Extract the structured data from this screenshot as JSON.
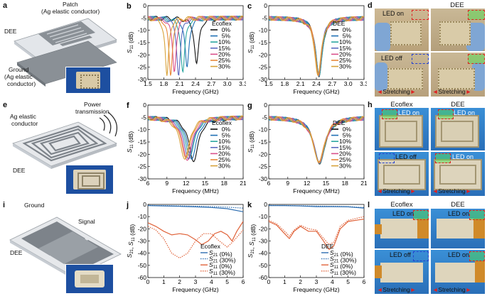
{
  "panels": {
    "a": {
      "label": "a",
      "patch": "Patch",
      "patch_sub": "(Ag elastic conductor)",
      "dee": "DEE",
      "ground": "Ground",
      "ground_sub": "(Ag elastic",
      "ground_sub2": "conductor)"
    },
    "d": {
      "label": "d",
      "col1": "",
      "col2": "DEE",
      "led_on_1": "LED on",
      "led_on_2": "",
      "led_off": "LED off",
      "led_on_3": "",
      "stretch1": "Stretching",
      "stretch2": "Stretching"
    },
    "e": {
      "label": "e",
      "ag": "Ag elastic",
      "ag_sub": "conductor",
      "power": "Power",
      "power_sub": "transmission",
      "dee": "DEE"
    },
    "h": {
      "label": "h",
      "col1": "Ecoflex",
      "col2": "DEE",
      "led_on_1": "LED on",
      "led_on_2": "LED on",
      "led_off": "LED off",
      "led_on_3": "LED on",
      "stretch1": "Stretching",
      "stretch2": "Stretching"
    },
    "i": {
      "label": "i",
      "ground": "Ground",
      "signal": "Signal",
      "dee": "DEE"
    },
    "l": {
      "label": "l",
      "col1": "Ecoflex",
      "col2": "DEE",
      "led_on_1": "LED on",
      "led_on_2": "LED on",
      "led_off": "LED off",
      "led_on_3": "LED on",
      "stretch1": "Stretching",
      "stretch2": "Stretching"
    }
  },
  "colors": {
    "c0": "#111111",
    "c5": "#1f6fb4",
    "c10": "#2aa6a0",
    "c15": "#5c6bc0",
    "c20": "#d94f8a",
    "c25": "#e8893a",
    "c30": "#d8a23a",
    "s21": "#2b6cb0",
    "s11": "#e0633a"
  },
  "chart_data": [
    {
      "id": "b",
      "panel_label": "b",
      "type": "line",
      "xlabel": "Frequency (GHz)",
      "ylabel": "S11 (dB)",
      "xlim": [
        1.5,
        3.3
      ],
      "ylim": [
        -30,
        0
      ],
      "xticks": [
        "1.5",
        "1.8",
        "2.1",
        "2.4",
        "2.7",
        "3.0",
        "3.3"
      ],
      "yticks": [
        "0",
        "-5",
        "-10",
        "-15",
        "-20",
        "-25",
        "-30"
      ],
      "legend_title": "Ecoflex",
      "series": [
        {
          "name": "0%",
          "dip_x": 2.42,
          "dip_y": -23.5,
          "width": 0.09
        },
        {
          "name": "5%",
          "dip_x": 2.24,
          "dip_y": -25,
          "width": 0.08
        },
        {
          "name": "10%",
          "dip_x": 2.16,
          "dip_y": -27,
          "width": 0.08
        },
        {
          "name": "15%",
          "dip_x": 2.08,
          "dip_y": -28.5,
          "width": 0.075
        },
        {
          "name": "20%",
          "dip_x": 2.0,
          "dip_y": -27,
          "width": 0.075
        },
        {
          "name": "25%",
          "dip_x": 1.93,
          "dip_y": -28.5,
          "width": 0.07
        },
        {
          "name": "30%",
          "dip_x": 1.86,
          "dip_y": -28.5,
          "width": 0.07
        }
      ]
    },
    {
      "id": "c",
      "panel_label": "c",
      "type": "line",
      "xlabel": "Frequency (GHz)",
      "ylabel": "S11 (dB)",
      "xlim": [
        1.5,
        3.3
      ],
      "ylim": [
        -30,
        0
      ],
      "xticks": [
        "1.5",
        "1.8",
        "2.1",
        "2.4",
        "2.7",
        "3.0",
        "3.3"
      ],
      "yticks": [
        "0",
        "-5",
        "-10",
        "-15",
        "-20",
        "-25",
        "-30"
      ],
      "legend_title": "DEE",
      "series": [
        {
          "name": "0%",
          "dip_x": 2.45,
          "dip_y": -29,
          "width": 0.13
        },
        {
          "name": "5%",
          "dip_x": 2.45,
          "dip_y": -28.5,
          "width": 0.13
        },
        {
          "name": "10%",
          "dip_x": 2.45,
          "dip_y": -28.8,
          "width": 0.135
        },
        {
          "name": "15%",
          "dip_x": 2.44,
          "dip_y": -28.2,
          "width": 0.13
        },
        {
          "name": "20%",
          "dip_x": 2.44,
          "dip_y": -28.6,
          "width": 0.135
        },
        {
          "name": "25%",
          "dip_x": 2.44,
          "dip_y": -28.0,
          "width": 0.13
        },
        {
          "name": "30%",
          "dip_x": 2.43,
          "dip_y": -28.4,
          "width": 0.135
        }
      ]
    },
    {
      "id": "f",
      "panel_label": "f",
      "type": "line",
      "xlabel": "Frequency (MHz)",
      "ylabel": "S11 (dB)",
      "xlim": [
        6,
        21
      ],
      "ylim": [
        -30,
        0
      ],
      "xticks": [
        "6",
        "9",
        "12",
        "15",
        "18",
        "21"
      ],
      "yticks": [
        "0",
        "-5",
        "-10",
        "-15",
        "-20",
        "-25",
        "-30"
      ],
      "legend_title": "Ecoflex",
      "series": [
        {
          "name": "0%",
          "dip_x": 13.2,
          "dip_y": -23,
          "width": 1.6
        },
        {
          "name": "5%",
          "dip_x": 12.9,
          "dip_y": -22,
          "width": 1.6
        },
        {
          "name": "10%",
          "dip_x": 12.6,
          "dip_y": -21,
          "width": 1.6
        },
        {
          "name": "15%",
          "dip_x": 12.4,
          "dip_y": -22,
          "width": 1.6
        },
        {
          "name": "20%",
          "dip_x": 12.2,
          "dip_y": -22.5,
          "width": 1.6
        },
        {
          "name": "25%",
          "dip_x": 12.0,
          "dip_y": -21.5,
          "width": 1.6
        },
        {
          "name": "30%",
          "dip_x": 11.8,
          "dip_y": -22,
          "width": 1.6
        }
      ]
    },
    {
      "id": "g",
      "panel_label": "g",
      "type": "line",
      "xlabel": "Frequency (MHz)",
      "ylabel": "S11 (dB)",
      "xlim": [
        6,
        21
      ],
      "ylim": [
        -30,
        0
      ],
      "xticks": [
        "6",
        "9",
        "12",
        "15",
        "18",
        "21"
      ],
      "yticks": [
        "0",
        "-5",
        "-10",
        "-15",
        "-20",
        "-25",
        "-30"
      ],
      "legend_title": "DEE",
      "series": [
        {
          "name": "0%",
          "dip_x": 14.0,
          "dip_y": -24,
          "width": 1.9
        },
        {
          "name": "5%",
          "dip_x": 14.0,
          "dip_y": -23.5,
          "width": 1.9
        },
        {
          "name": "10%",
          "dip_x": 14.0,
          "dip_y": -23.8,
          "width": 1.95
        },
        {
          "name": "15%",
          "dip_x": 13.95,
          "dip_y": -23.2,
          "width": 1.9
        },
        {
          "name": "20%",
          "dip_x": 13.95,
          "dip_y": -23.6,
          "width": 1.95
        },
        {
          "name": "25%",
          "dip_x": 13.9,
          "dip_y": -23.0,
          "width": 1.9
        },
        {
          "name": "30%",
          "dip_x": 13.9,
          "dip_y": -23.4,
          "width": 1.95
        }
      ]
    },
    {
      "id": "j",
      "panel_label": "j",
      "type": "line",
      "xlabel": "Frequency (GHz)",
      "ylabel": "S21, S11 (dB)",
      "xlim": [
        0,
        6
      ],
      "ylim": [
        -60,
        0
      ],
      "xticks": [
        "0",
        "1",
        "2",
        "3",
        "4",
        "5",
        "6"
      ],
      "yticks": [
        "0",
        "-10",
        "-20",
        "-30",
        "-40",
        "-50",
        "-60"
      ],
      "legend_title": "Ecoflex",
      "series": [
        {
          "name": "S21 (0%)",
          "style": "solid",
          "color": "s21",
          "points": [
            [
              0,
              -1
            ],
            [
              1,
              -1.2
            ],
            [
              2,
              -1.6
            ],
            [
              3,
              -2
            ],
            [
              4,
              -2.5
            ],
            [
              5,
              -3.5
            ],
            [
              6,
              -6
            ]
          ]
        },
        {
          "name": "S21 (30%)",
          "style": "dotted",
          "color": "s21",
          "points": [
            [
              0,
              -0.8
            ],
            [
              1,
              -1
            ],
            [
              2,
              -1.2
            ],
            [
              3,
              -1.5
            ],
            [
              4,
              -1.8
            ],
            [
              5,
              -2.2
            ],
            [
              6,
              -3
            ]
          ]
        },
        {
          "name": "S11 (0%)",
          "style": "solid",
          "color": "s11",
          "points": [
            [
              0,
              -15
            ],
            [
              0.5,
              -18
            ],
            [
              1,
              -22
            ],
            [
              1.5,
              -25
            ],
            [
              2,
              -24
            ],
            [
              2.5,
              -25
            ],
            [
              3,
              -29
            ],
            [
              3.4,
              -33
            ],
            [
              3.8,
              -30
            ],
            [
              4.2,
              -24
            ],
            [
              4.6,
              -22
            ],
            [
              5,
              -25
            ],
            [
              5.3,
              -30
            ],
            [
              5.6,
              -22
            ],
            [
              6,
              -14
            ]
          ]
        },
        {
          "name": "S11 (30%)",
          "style": "dotted",
          "color": "s11",
          "points": [
            [
              0,
              -18
            ],
            [
              0.5,
              -21
            ],
            [
              1,
              -28
            ],
            [
              1.5,
              -40
            ],
            [
              2,
              -44
            ],
            [
              2.5,
              -40
            ],
            [
              3,
              -30
            ],
            [
              3.5,
              -24
            ],
            [
              4,
              -24
            ],
            [
              4.5,
              -30
            ],
            [
              5,
              -35
            ],
            [
              5.4,
              -30
            ],
            [
              6,
              -21
            ]
          ]
        }
      ]
    },
    {
      "id": "k",
      "panel_label": "k",
      "type": "line",
      "xlabel": "Frequency (GHz)",
      "ylabel": "S21, S11 (dB)",
      "xlim": [
        0,
        6
      ],
      "ylim": [
        -60,
        0
      ],
      "xticks": [
        "0",
        "1",
        "2",
        "3",
        "4",
        "5",
        "6"
      ],
      "yticks": [
        "0",
        "-10",
        "-20",
        "-30",
        "-40",
        "-50",
        "-60"
      ],
      "legend_title": "DEE",
      "series": [
        {
          "name": "S21 (0%)",
          "style": "solid",
          "color": "s21",
          "points": [
            [
              0,
              -1
            ],
            [
              1,
              -1
            ],
            [
              2,
              -1.3
            ],
            [
              3,
              -1.8
            ],
            [
              4,
              -1.8
            ],
            [
              5,
              -2
            ],
            [
              6,
              -3
            ]
          ]
        },
        {
          "name": "S21 (30%)",
          "style": "dotted",
          "color": "s21",
          "points": [
            [
              0,
              -0.8
            ],
            [
              1,
              -0.9
            ],
            [
              2,
              -1.1
            ],
            [
              3,
              -1.4
            ],
            [
              4,
              -1.5
            ],
            [
              5,
              -1.8
            ],
            [
              6,
              -2.5
            ]
          ]
        },
        {
          "name": "S11 (0%)",
          "style": "solid",
          "color": "s11",
          "points": [
            [
              0,
              -14
            ],
            [
              0.5,
              -17
            ],
            [
              1,
              -24
            ],
            [
              1.3,
              -28
            ],
            [
              1.6,
              -22
            ],
            [
              2,
              -18
            ],
            [
              2.5,
              -22
            ],
            [
              3,
              -22
            ],
            [
              3.4,
              -29
            ],
            [
              3.8,
              -37
            ],
            [
              4.1,
              -34
            ],
            [
              4.5,
              -20
            ],
            [
              5,
              -14
            ],
            [
              6,
              -12
            ]
          ]
        },
        {
          "name": "S11 (30%)",
          "style": "dotted",
          "color": "s11",
          "points": [
            [
              0,
              -13
            ],
            [
              0.5,
              -16
            ],
            [
              1,
              -22
            ],
            [
              1.3,
              -26
            ],
            [
              1.6,
              -21
            ],
            [
              2,
              -17
            ],
            [
              2.5,
              -20
            ],
            [
              3,
              -21
            ],
            [
              3.4,
              -27
            ],
            [
              3.8,
              -33
            ],
            [
              4.1,
              -31
            ],
            [
              4.5,
              -18
            ],
            [
              5,
              -13
            ],
            [
              6,
              -10
            ]
          ]
        }
      ]
    }
  ]
}
